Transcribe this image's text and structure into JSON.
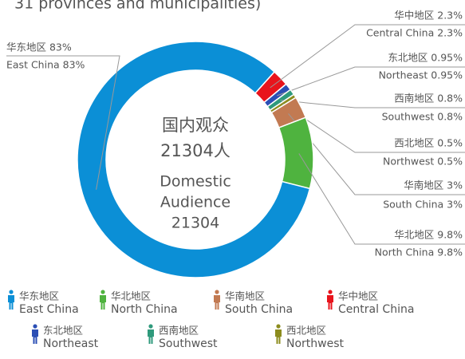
{
  "chart_data": {
    "type": "donut",
    "subtitle": "31 provinces and municipalities)",
    "center_text": [
      "国内观众",
      "21304人",
      "Domestic",
      "Audience",
      "21304"
    ],
    "start_angle": 42,
    "series": [
      {
        "name": "Central China",
        "value": 2.3,
        "color": "#e8141c",
        "label_cn": "华中地区 2.3%",
        "label_en": "Central China 2.3%"
      },
      {
        "name": "Northeast",
        "value": 0.95,
        "color": "#2b4fb5",
        "label_cn": "东北地区 0.95%",
        "label_en": "Northeast 0.95%"
      },
      {
        "name": "Southwest",
        "value": 0.8,
        "color": "#2f9a7c",
        "label_cn": "西南地区 0.8%",
        "label_en": "Southwest 0.8%"
      },
      {
        "name": "Northwest",
        "value": 0.5,
        "color": "#8c8c1e",
        "label_cn": "西北地区 0.5%",
        "label_en": "Northwest 0.5%"
      },
      {
        "name": "South China",
        "value": 3,
        "color": "#c27a52",
        "label_cn": "华南地区 3%",
        "label_en": "South China 3%"
      },
      {
        "name": "North China",
        "value": 9.8,
        "color": "#4fb33f",
        "label_cn": "华北地区 9.8%",
        "label_en": "North China 9.8%"
      },
      {
        "name": "East China",
        "value": 83,
        "color": "#0b8fd6",
        "label_cn": "华东地区 83%",
        "label_en": "East China 83%"
      }
    ],
    "legend": [
      {
        "cn": "华东地区",
        "en": "East China",
        "color": "#0b8fd6"
      },
      {
        "cn": "华北地区",
        "en": "North China",
        "color": "#4fb33f"
      },
      {
        "cn": "华南地区",
        "en": "South China",
        "color": "#c27a52"
      },
      {
        "cn": "华中地区",
        "en": "Central China",
        "color": "#e8141c"
      },
      {
        "cn": "东北地区",
        "en": "Northeast",
        "color": "#2b4fb5"
      },
      {
        "cn": "西南地区",
        "en": "Southwest",
        "color": "#2f9a7c"
      },
      {
        "cn": "西北地区",
        "en": "Northwest",
        "color": "#8c8c1e"
      }
    ]
  }
}
